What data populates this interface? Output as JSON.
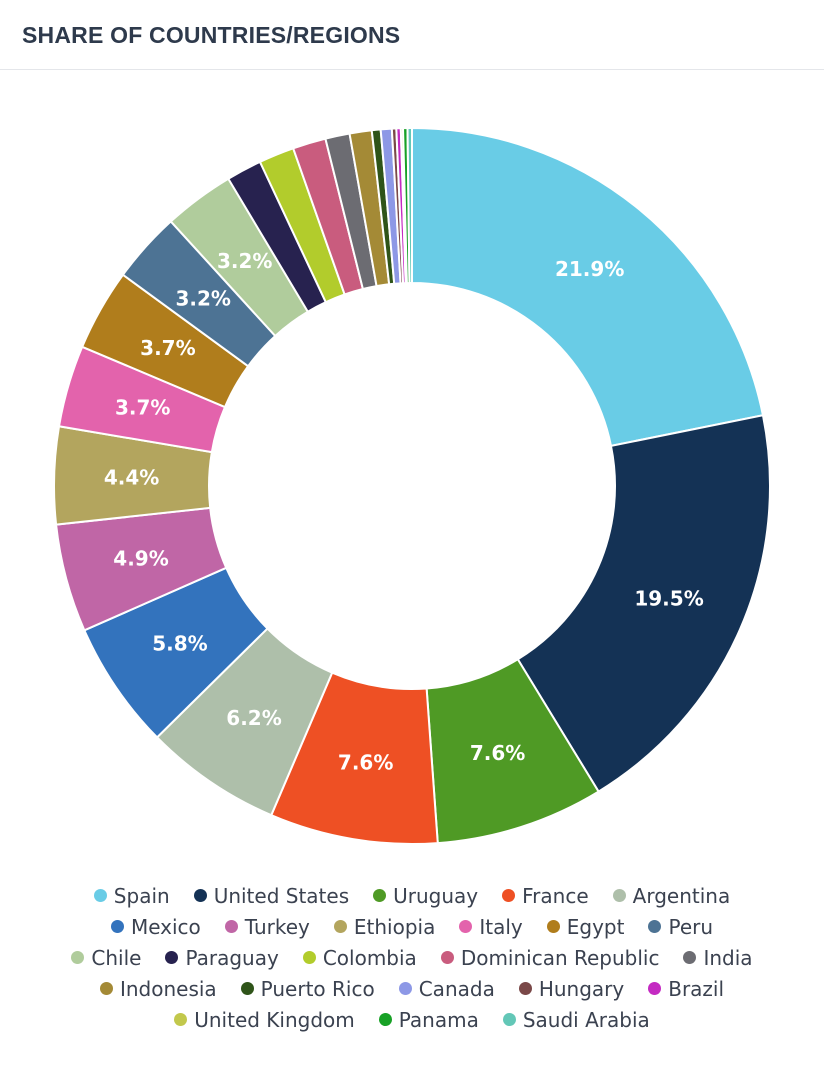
{
  "header": {
    "title": "SHARE OF COUNTRIES/REGIONS"
  },
  "chart_data": {
    "type": "pie",
    "style": "donut",
    "title": "SHARE OF COUNTRIES/REGIONS",
    "legend_position": "bottom",
    "unit": "%",
    "slices": [
      {
        "name": "Spain",
        "value": 21.9,
        "label": "21.9%",
        "color": "#69cce6"
      },
      {
        "name": "United States",
        "value": 19.5,
        "label": "19.5%",
        "color": "#143255"
      },
      {
        "name": "Uruguay",
        "value": 7.6,
        "label": "7.6%",
        "color": "#4f9a25"
      },
      {
        "name": "France",
        "value": 7.6,
        "label": "7.6%",
        "color": "#ee5024"
      },
      {
        "name": "Argentina",
        "value": 6.2,
        "label": "6.2%",
        "color": "#aebfaa"
      },
      {
        "name": "Mexico",
        "value": 5.8,
        "label": "5.8%",
        "color": "#3373bd"
      },
      {
        "name": "Turkey",
        "value": 4.9,
        "label": "4.9%",
        "color": "#c066a6"
      },
      {
        "name": "Ethiopia",
        "value": 4.4,
        "label": "4.4%",
        "color": "#b3a55e"
      },
      {
        "name": "Italy",
        "value": 3.7,
        "label": "3.7%",
        "color": "#e363ac"
      },
      {
        "name": "Egypt",
        "value": 3.7,
        "label": "3.7%",
        "color": "#b07d1c"
      },
      {
        "name": "Peru",
        "value": 3.2,
        "label": "3.2%",
        "color": "#4d7394"
      },
      {
        "name": "Chile",
        "value": 3.2,
        "label": "3.2%",
        "color": "#b0cc9c"
      },
      {
        "name": "Paraguay",
        "value": 1.6,
        "label": "",
        "color": "#27224f"
      },
      {
        "name": "Colombia",
        "value": 1.6,
        "label": "",
        "color": "#b2cc2c"
      },
      {
        "name": "Dominican Republic",
        "value": 1.5,
        "label": "",
        "color": "#c95c7e"
      },
      {
        "name": "India",
        "value": 1.1,
        "label": "",
        "color": "#6c6c72"
      },
      {
        "name": "Indonesia",
        "value": 1.0,
        "label": "",
        "color": "#a48a36"
      },
      {
        "name": "Puerto Rico",
        "value": 0.4,
        "label": "",
        "color": "#2f5419"
      },
      {
        "name": "Canada",
        "value": 0.5,
        "label": "",
        "color": "#8d98e6"
      },
      {
        "name": "Hungary",
        "value": 0.2,
        "label": "",
        "color": "#7a4848"
      },
      {
        "name": "Brazil",
        "value": 0.2,
        "label": "",
        "color": "#c42ac2"
      },
      {
        "name": "United Kingdom",
        "value": 0.1,
        "label": "",
        "color": "#c2c84c"
      },
      {
        "name": "Panama",
        "value": 0.2,
        "label": "",
        "color": "#18a126"
      },
      {
        "name": "Saudi Arabia",
        "value": 0.2,
        "label": "",
        "color": "#63c7b7"
      }
    ]
  }
}
